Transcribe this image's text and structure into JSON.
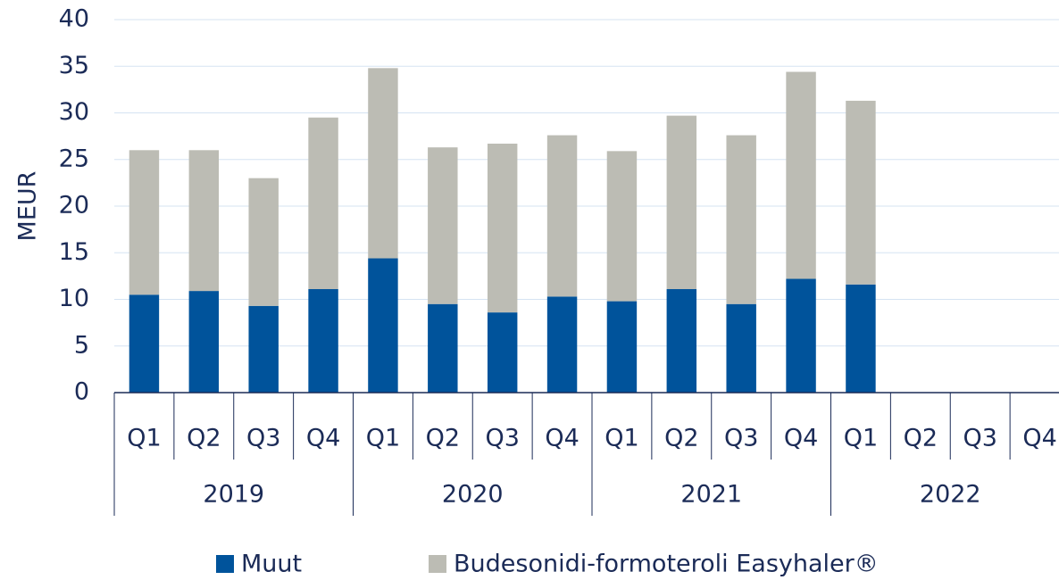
{
  "chart_data": {
    "type": "stacked_bar",
    "y_label": "MEUR",
    "categories": [
      "Q1",
      "Q2",
      "Q3",
      "Q4",
      "Q1",
      "Q2",
      "Q3",
      "Q4",
      "Q1",
      "Q2",
      "Q3",
      "Q4",
      "Q1",
      "Q2",
      "Q3",
      "Q4"
    ],
    "groups": [
      "2019",
      "2020",
      "2021",
      "2022"
    ],
    "series": [
      {
        "name": "Muut",
        "color": "#00539b",
        "values": [
          10.5,
          10.9,
          9.3,
          11.1,
          14.4,
          9.5,
          8.6,
          10.3,
          9.8,
          11.1,
          9.5,
          12.2,
          11.6,
          null,
          null,
          null
        ]
      },
      {
        "name": "Budesonidi-formoteroli Easyhaler®",
        "color": "#bcbcb4",
        "values": [
          15.5,
          15.1,
          13.7,
          18.4,
          20.4,
          16.8,
          18.1,
          17.3,
          16.1,
          18.6,
          18.1,
          22.2,
          19.7,
          null,
          null,
          null
        ]
      }
    ],
    "ylim": [
      0,
      40
    ],
    "yticks": [
      0,
      5,
      10,
      15,
      20,
      25,
      30,
      35,
      40
    ],
    "grid": true,
    "legend": "bottom"
  }
}
